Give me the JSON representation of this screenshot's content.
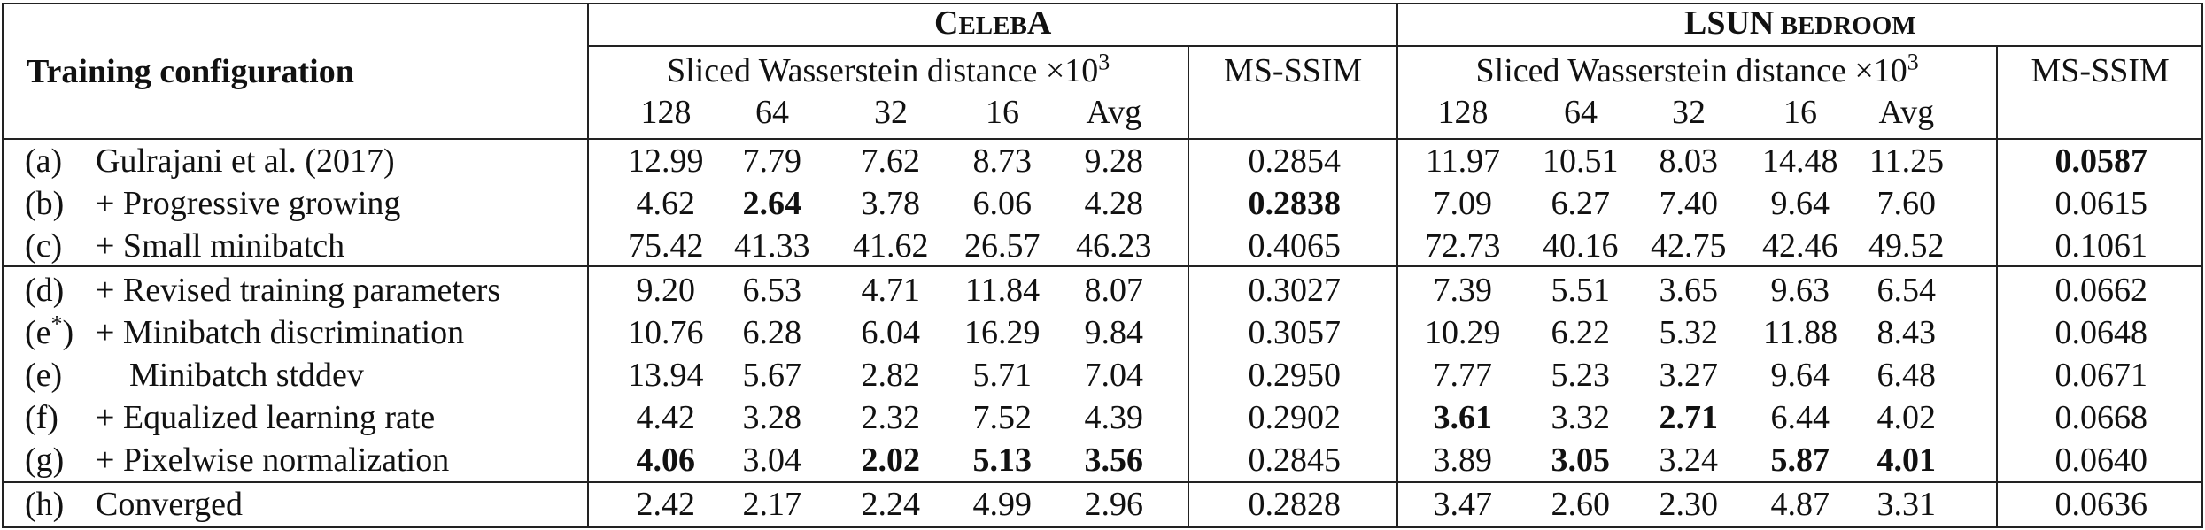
{
  "header": {
    "training_configuration": "Training configuration",
    "datasets": [
      {
        "name_parts": [
          {
            "text": "C",
            "size": "big"
          },
          {
            "text": "ELEB",
            "size": "small"
          },
          {
            "text": "A",
            "size": "big"
          }
        ]
      },
      {
        "name_parts": [
          {
            "text": "LSUN",
            "size": "big"
          },
          {
            "text": " BEDROOM",
            "size": "small"
          }
        ]
      }
    ],
    "swd_label": "Sliced Wasserstein distance ×10",
    "swd_exponent": "3",
    "msssim_label": "MS-SSIM",
    "resolutions": [
      "128",
      "64",
      "32",
      "16",
      "Avg"
    ]
  },
  "rows": [
    {
      "tag": "(a)",
      "name": "Gulrajani et al. (2017)",
      "celeba_swd": [
        "12.99",
        "7.79",
        "7.62",
        "8.73",
        "9.28"
      ],
      "celeba_ms": "0.2854",
      "lsun_swd": [
        "11.97",
        "10.51",
        "8.03",
        "14.48",
        "11.25"
      ],
      "lsun_ms": "0.0587",
      "bold_celeba": [],
      "bold_celeba_ms": false,
      "bold_lsun": [],
      "bold_lsun_ms": true
    },
    {
      "tag": "(b)",
      "name": "+ Progressive growing",
      "celeba_swd": [
        "4.62",
        "2.64",
        "3.78",
        "6.06",
        "4.28"
      ],
      "celeba_ms": "0.2838",
      "lsun_swd": [
        "7.09",
        "6.27",
        "7.40",
        "9.64",
        "7.60"
      ],
      "lsun_ms": "0.0615",
      "bold_celeba": [
        1
      ],
      "bold_celeba_ms": true,
      "bold_lsun": [],
      "bold_lsun_ms": false
    },
    {
      "tag": "(c)",
      "name": "+ Small minibatch",
      "celeba_swd": [
        "75.42",
        "41.33",
        "41.62",
        "26.57",
        "46.23"
      ],
      "celeba_ms": "0.4065",
      "lsun_swd": [
        "72.73",
        "40.16",
        "42.75",
        "42.46",
        "49.52"
      ],
      "lsun_ms": "0.1061",
      "bold_celeba": [],
      "bold_celeba_ms": false,
      "bold_lsun": [],
      "bold_lsun_ms": false
    },
    {
      "tag": "(d)",
      "name": "+ Revised training parameters",
      "celeba_swd": [
        "9.20",
        "6.53",
        "4.71",
        "11.84",
        "8.07"
      ],
      "celeba_ms": "0.3027",
      "lsun_swd": [
        "7.39",
        "5.51",
        "3.65",
        "9.63",
        "6.54"
      ],
      "lsun_ms": "0.0662",
      "bold_celeba": [],
      "bold_celeba_ms": false,
      "bold_lsun": [],
      "bold_lsun_ms": false
    },
    {
      "tag": "(e*)",
      "name": "+ Minibatch discrimination",
      "celeba_swd": [
        "10.76",
        "6.28",
        "6.04",
        "16.29",
        "9.84"
      ],
      "celeba_ms": "0.3057",
      "lsun_swd": [
        "10.29",
        "6.22",
        "5.32",
        "11.88",
        "8.43"
      ],
      "lsun_ms": "0.0648",
      "bold_celeba": [],
      "bold_celeba_ms": false,
      "bold_lsun": [],
      "bold_lsun_ms": false
    },
    {
      "tag": "(e)",
      "name": "Minibatch stddev",
      "celeba_swd": [
        "13.94",
        "5.67",
        "2.82",
        "5.71",
        "7.04"
      ],
      "celeba_ms": "0.2950",
      "lsun_swd": [
        "7.77",
        "5.23",
        "3.27",
        "9.64",
        "6.48"
      ],
      "lsun_ms": "0.0671",
      "bold_celeba": [],
      "bold_celeba_ms": false,
      "bold_lsun": [],
      "bold_lsun_ms": false
    },
    {
      "tag": "(f)",
      "name": "+ Equalized learning rate",
      "celeba_swd": [
        "4.42",
        "3.28",
        "2.32",
        "7.52",
        "4.39"
      ],
      "celeba_ms": "0.2902",
      "lsun_swd": [
        "3.61",
        "3.32",
        "2.71",
        "6.44",
        "4.02"
      ],
      "lsun_ms": "0.0668",
      "bold_celeba": [],
      "bold_celeba_ms": false,
      "bold_lsun": [
        0,
        2
      ],
      "bold_lsun_ms": false
    },
    {
      "tag": "(g)",
      "name": "+ Pixelwise normalization",
      "celeba_swd": [
        "4.06",
        "3.04",
        "2.02",
        "5.13",
        "3.56"
      ],
      "celeba_ms": "0.2845",
      "lsun_swd": [
        "3.89",
        "3.05",
        "3.24",
        "5.87",
        "4.01"
      ],
      "lsun_ms": "0.0640",
      "bold_celeba": [
        0,
        2,
        3,
        4
      ],
      "bold_celeba_ms": false,
      "bold_lsun": [
        1,
        3,
        4
      ],
      "bold_lsun_ms": false
    },
    {
      "tag": "(h)",
      "name": "Converged",
      "celeba_swd": [
        "2.42",
        "2.17",
        "2.24",
        "4.99",
        "2.96"
      ],
      "celeba_ms": "0.2828",
      "lsun_swd": [
        "3.47",
        "2.60",
        "2.30",
        "4.87",
        "3.31"
      ],
      "lsun_ms": "0.0636",
      "bold_celeba": [],
      "bold_celeba_ms": false,
      "bold_lsun": [],
      "bold_lsun_ms": false
    }
  ]
}
